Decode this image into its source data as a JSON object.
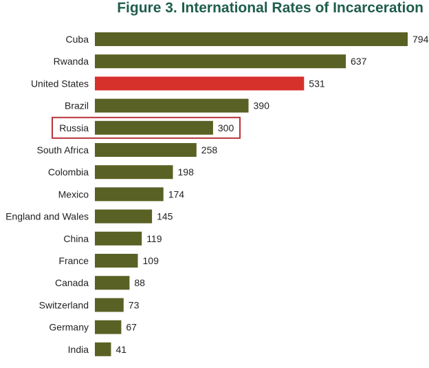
{
  "chart_data": {
    "type": "bar",
    "orientation": "horizontal",
    "title": "Figure 3. International Rates of Incarceration",
    "categories": [
      "Cuba",
      "Rwanda",
      "United States",
      "Brazil",
      "Russia",
      "South Africa",
      "Colombia",
      "Mexico",
      "England and Wales",
      "China",
      "France",
      "Canada",
      "Switzerland",
      "Germany",
      "India"
    ],
    "values": [
      794,
      637,
      531,
      390,
      300,
      258,
      198,
      174,
      145,
      119,
      109,
      88,
      73,
      67,
      41
    ],
    "xlim": [
      0,
      794
    ],
    "grid": false,
    "legend": "none",
    "highlighted_bar": "United States",
    "boxed_category": "Russia",
    "colors": {
      "title": "#1f5d4c",
      "bar": "#5a6124",
      "highlight": "#d7312b",
      "box_outline": "#b8323a",
      "text": "#222222"
    }
  }
}
